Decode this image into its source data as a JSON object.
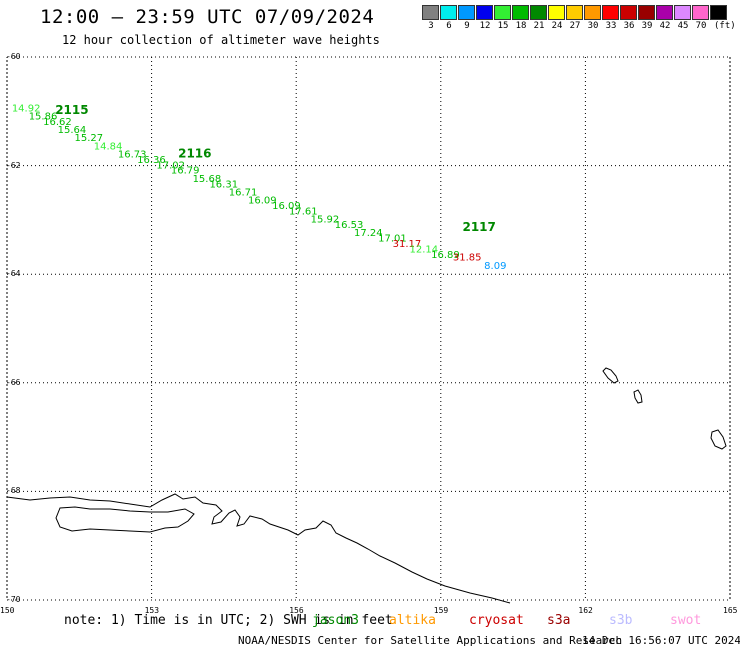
{
  "header": {
    "title": "12:00 — 23:59 UTC 07/09/2024",
    "subtitle": "12 hour collection of altimeter wave heights"
  },
  "scale": {
    "unit": "(ft)",
    "bins": [
      {
        "label": "3",
        "color": "#808080"
      },
      {
        "label": "6",
        "color": "#00eeee"
      },
      {
        "label": "9",
        "color": "#0099ff"
      },
      {
        "label": "12",
        "color": "#0000ee"
      },
      {
        "label": "15",
        "color": "#33ee33"
      },
      {
        "label": "18",
        "color": "#00bb00"
      },
      {
        "label": "21",
        "color": "#008800"
      },
      {
        "label": "24",
        "color": "#ffff00"
      },
      {
        "label": "27",
        "color": "#ffcc00"
      },
      {
        "label": "30",
        "color": "#ff9900"
      },
      {
        "label": "33",
        "color": "#ff0000"
      },
      {
        "label": "36",
        "color": "#cc0000"
      },
      {
        "label": "39",
        "color": "#990000"
      },
      {
        "label": "42",
        "color": "#aa00aa"
      },
      {
        "label": "45",
        "color": "#dd88ff"
      },
      {
        "label": "70",
        "color": "#ff66cc"
      },
      {
        "label": "",
        "color": "#000000"
      }
    ]
  },
  "map": {
    "lon_range": [
      150,
      165
    ],
    "lat_range": [
      -60,
      -70
    ],
    "lat_ticks": [
      "-60",
      "-62",
      "-64",
      "-66",
      "-68",
      "-70"
    ],
    "lon_ticks": [
      "150",
      "153",
      "156",
      "159",
      "162",
      "165"
    ],
    "grid": "dotted"
  },
  "passes": [
    {
      "label": "2115",
      "lon": 151.0,
      "lat": -61.05,
      "color": "#008800"
    },
    {
      "label": "2116",
      "lon": 153.55,
      "lat": -61.85,
      "color": "#008800"
    },
    {
      "label": "2117",
      "lon": 159.45,
      "lat": -63.2,
      "color": "#008800"
    }
  ],
  "measurements": [
    {
      "text": "14.92",
      "lon": 150.1,
      "lat": -61.0,
      "color": "#33ee33"
    },
    {
      "text": "15.86",
      "lon": 150.45,
      "lat": -61.15,
      "color": "#00bb00"
    },
    {
      "text": "16.62",
      "lon": 150.75,
      "lat": -61.25,
      "color": "#00bb00"
    },
    {
      "text": "15.64",
      "lon": 151.05,
      "lat": -61.4,
      "color": "#00bb00"
    },
    {
      "text": "15.27",
      "lon": 151.4,
      "lat": -61.55,
      "color": "#00bb00"
    },
    {
      "text": "14.84",
      "lon": 151.8,
      "lat": -61.7,
      "color": "#33ee33"
    },
    {
      "text": "16.73",
      "lon": 152.3,
      "lat": -61.85,
      "color": "#00bb00"
    },
    {
      "text": "16.36",
      "lon": 152.7,
      "lat": -61.95,
      "color": "#00bb00"
    },
    {
      "text": "17.02",
      "lon": 153.1,
      "lat": -62.05,
      "color": "#00bb00"
    },
    {
      "text": "16.79",
      "lon": 153.4,
      "lat": -62.15,
      "color": "#00bb00"
    },
    {
      "text": "15.68",
      "lon": 153.85,
      "lat": -62.3,
      "color": "#00bb00"
    },
    {
      "text": "16.31",
      "lon": 154.2,
      "lat": -62.4,
      "color": "#00bb00"
    },
    {
      "text": "16.71",
      "lon": 154.6,
      "lat": -62.55,
      "color": "#00bb00"
    },
    {
      "text": "16.09",
      "lon": 155.0,
      "lat": -62.7,
      "color": "#00bb00"
    },
    {
      "text": "16.09",
      "lon": 155.5,
      "lat": -62.8,
      "color": "#00bb00"
    },
    {
      "text": "17.61",
      "lon": 155.85,
      "lat": -62.9,
      "color": "#00bb00"
    },
    {
      "text": "15.92",
      "lon": 156.3,
      "lat": -63.05,
      "color": "#00bb00"
    },
    {
      "text": "16.53",
      "lon": 156.8,
      "lat": -63.15,
      "color": "#00bb00"
    },
    {
      "text": "17.24",
      "lon": 157.2,
      "lat": -63.3,
      "color": "#00bb00"
    },
    {
      "text": "17.01",
      "lon": 157.7,
      "lat": -63.4,
      "color": "#00bb00"
    },
    {
      "text": "31.17",
      "lon": 158.0,
      "lat": -63.5,
      "color": "#cc0000"
    },
    {
      "text": "12.14",
      "lon": 158.35,
      "lat": -63.6,
      "color": "#33ee33"
    },
    {
      "text": "16.89",
      "lon": 158.8,
      "lat": -63.7,
      "color": "#00bb00"
    },
    {
      "text": "31.85",
      "lon": 159.25,
      "lat": -63.75,
      "color": "#cc0000"
    },
    {
      "text": "8.09",
      "lon": 159.9,
      "lat": -63.9,
      "color": "#0099ff"
    }
  ],
  "footer": {
    "note": "note: 1) Time is in UTC; 2) SWH is in feet",
    "satellites": [
      {
        "name": "jason3",
        "color": "#008800"
      },
      {
        "name": "altika",
        "color": "#ff9900"
      },
      {
        "name": "cryosat",
        "color": "#cc0000"
      },
      {
        "name": "s3a",
        "color": "#990000"
      },
      {
        "name": "s3b",
        "color": "#bbbbff"
      },
      {
        "name": "swot",
        "color": "#ff99dd"
      }
    ],
    "credit": "NOAA/NESDIS Center for Satellite Applications and Research",
    "timestamp": "14 Dec 16:56:07 UTC 2024"
  }
}
